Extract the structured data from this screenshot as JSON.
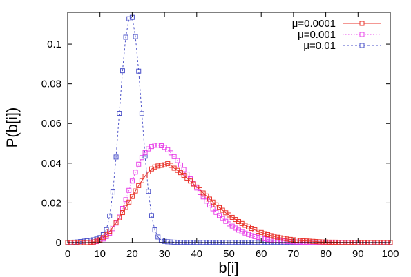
{
  "chart_data": {
    "type": "line",
    "xlabel": "b[i]",
    "ylabel": "P(b[i])",
    "xlim": [
      0,
      100
    ],
    "ylim": [
      0,
      0.116
    ],
    "x_ticks": [
      "0",
      "10",
      "20",
      "30",
      "40",
      "50",
      "60",
      "70",
      "80",
      "90",
      "100"
    ],
    "y_ticks": [
      "0",
      "0.02",
      "0.04",
      "0.06",
      "0.08",
      "0.1"
    ],
    "legend_position": "top-right",
    "grid": false,
    "markers": "open-square",
    "series": [
      {
        "name": "μ=0.0001",
        "color": "#e8322a",
        "line_style": "solid",
        "x": [
          0,
          1,
          2,
          3,
          4,
          5,
          6,
          7,
          8,
          9,
          10,
          11,
          12,
          13,
          14,
          15,
          16,
          17,
          18,
          19,
          20,
          21,
          22,
          23,
          24,
          25,
          26,
          27,
          28,
          29,
          30,
          31,
          32,
          33,
          34,
          35,
          36,
          37,
          38,
          39,
          40,
          41,
          42,
          43,
          44,
          45,
          46,
          47,
          48,
          49,
          50,
          51,
          52,
          53,
          54,
          55,
          56,
          57,
          58,
          59,
          60,
          61,
          62,
          63,
          64,
          65,
          66,
          67,
          68,
          69,
          70,
          71,
          72,
          73,
          74,
          75,
          76,
          77,
          78,
          79,
          80,
          81,
          82,
          83,
          84,
          85,
          86,
          87,
          88,
          89,
          90,
          91,
          92,
          93,
          94,
          95,
          96,
          97,
          98,
          99,
          100
        ],
        "values": [
          0,
          0,
          0,
          0,
          0,
          0,
          0,
          0.0001,
          0.0003,
          0.0007,
          0.0014,
          0.0025,
          0.0039,
          0.0057,
          0.0078,
          0.0101,
          0.0125,
          0.0151,
          0.0177,
          0.0204,
          0.0232,
          0.026,
          0.0287,
          0.0312,
          0.0335,
          0.0356,
          0.0371,
          0.0381,
          0.0386,
          0.0389,
          0.0392,
          0.0398,
          0.0389,
          0.0375,
          0.0364,
          0.0352,
          0.0339,
          0.0325,
          0.031,
          0.0295,
          0.028,
          0.0266,
          0.025,
          0.0235,
          0.0219,
          0.0204,
          0.019,
          0.0176,
          0.0163,
          0.015,
          0.0139,
          0.0127,
          0.0116,
          0.0106,
          0.0096,
          0.0087,
          0.0079,
          0.0071,
          0.0064,
          0.0057,
          0.0051,
          0.0045,
          0.004,
          0.0035,
          0.0031,
          0.0027,
          0.0024,
          0.0021,
          0.0018,
          0.0016,
          0.0014,
          0.0012,
          0.001,
          0.0009,
          0.0008,
          0.0007,
          0.0006,
          0.0005,
          0.0004,
          0.0003,
          0.0003,
          0.0002,
          0.0002,
          0.0002,
          0.0001,
          0.0001,
          0.0001,
          0.0001,
          0.0001,
          0.0001,
          0,
          0,
          0,
          0,
          0,
          0,
          0,
          0,
          0,
          0,
          0
        ]
      },
      {
        "name": "μ=0.001",
        "color": "#e840e8",
        "line_style": "dotted",
        "x": [
          0,
          1,
          2,
          3,
          4,
          5,
          6,
          7,
          8,
          9,
          10,
          11,
          12,
          13,
          14,
          15,
          16,
          17,
          18,
          19,
          20,
          21,
          22,
          23,
          24,
          25,
          26,
          27,
          28,
          29,
          30,
          31,
          32,
          33,
          34,
          35,
          36,
          37,
          38,
          39,
          40,
          41,
          42,
          43,
          44,
          45,
          46,
          47,
          48,
          49,
          50,
          51,
          52,
          53,
          54,
          55,
          56,
          57,
          58,
          59,
          60,
          61,
          62,
          63,
          64,
          65,
          66,
          67,
          68,
          69,
          70,
          71,
          72,
          73,
          74,
          75,
          76,
          77,
          78,
          79,
          80,
          81,
          82,
          83,
          84,
          85,
          86,
          87,
          88,
          89,
          90,
          91,
          92,
          93,
          94,
          95,
          96,
          97,
          98,
          99,
          100
        ],
        "values": [
          0,
          0,
          0,
          0,
          0,
          0,
          0,
          0.0001,
          0.0002,
          0.0005,
          0.001,
          0.0018,
          0.003,
          0.0047,
          0.007,
          0.0098,
          0.0132,
          0.0172,
          0.0216,
          0.0263,
          0.031,
          0.0355,
          0.0395,
          0.0428,
          0.0454,
          0.0472,
          0.0484,
          0.049,
          0.0491,
          0.0488,
          0.048,
          0.0468,
          0.0452,
          0.0433,
          0.0413,
          0.0391,
          0.0368,
          0.0345,
          0.0321,
          0.0298,
          0.0275,
          0.0252,
          0.023,
          0.0209,
          0.0189,
          0.017,
          0.0152,
          0.0136,
          0.0121,
          0.0107,
          0.0094,
          0.0083,
          0.0073,
          0.0063,
          0.0055,
          0.0048,
          0.0041,
          0.0035,
          0.003,
          0.0026,
          0.0022,
          0.0019,
          0.0016,
          0.0013,
          0.0011,
          0.0009,
          0.0008,
          0.0007,
          0.0006,
          0.0005,
          0.0004,
          0.0003,
          0.0003,
          0.0002,
          0.0002,
          0.0001,
          0.0001,
          0.0001,
          0.0001,
          0.0001,
          0,
          0,
          0,
          0,
          0,
          0,
          0,
          0,
          0,
          0,
          0,
          0,
          0,
          0,
          0,
          0,
          0,
          0,
          0,
          0,
          0
        ]
      },
      {
        "name": "μ=0.01",
        "color": "#4a50c8",
        "line_style": "dashed",
        "x": [
          0,
          1,
          2,
          3,
          4,
          5,
          6,
          7,
          8,
          9,
          10,
          11,
          12,
          13,
          14,
          15,
          16,
          17,
          18,
          19,
          20,
          21,
          22,
          23,
          24,
          25,
          26,
          27,
          28,
          29,
          30,
          31,
          32,
          33,
          34,
          35,
          36,
          37,
          38,
          39,
          40,
          41,
          42,
          43,
          44,
          45,
          46,
          47,
          48,
          49,
          50,
          51,
          52,
          53,
          54,
          55,
          56,
          57,
          58,
          59,
          60,
          61,
          62,
          63,
          64,
          65,
          66,
          67,
          68,
          69,
          70,
          71,
          72,
          73,
          74,
          75,
          76,
          77,
          78,
          79,
          80,
          81,
          82,
          83,
          84,
          85,
          86,
          87,
          88,
          89,
          90,
          91,
          92,
          93,
          94,
          95,
          96,
          97,
          98,
          99,
          100
        ],
        "values": [
          0.0001,
          0.0001,
          0.0002,
          0.0003,
          0.0005,
          0.0007,
          0.0009,
          0.0011,
          0.0014,
          0.0018,
          0.0025,
          0.004,
          0.0065,
          0.0134,
          0.0255,
          0.0431,
          0.0651,
          0.0866,
          0.1035,
          0.1128,
          0.1135,
          0.1038,
          0.0864,
          0.065,
          0.0435,
          0.0258,
          0.0136,
          0.0064,
          0.0028,
          0.0012,
          0.0006,
          0.0004,
          0.0003,
          0.0002,
          0.0001,
          0.0001,
          0.0001,
          0.0001,
          0.0001,
          0.0001,
          0.0001,
          0.0001,
          0.0001,
          0.0001,
          0.0001,
          0.0001,
          0.0001,
          0.0001,
          0.0001,
          0.0001,
          0.0001,
          0.0001,
          0.0001,
          0.0001,
          0.0001,
          0.0001,
          0.0001,
          0.0001,
          0.0001,
          0.0001,
          0.0001,
          0.0001,
          0.0001,
          0.0001,
          0.0001,
          0.0001,
          0.0001,
          0.0001,
          0.0001,
          0.0001,
          0.0001,
          0.0001,
          0.0001,
          0.0001,
          0.0001,
          0.0001,
          0.0001,
          0.0001,
          0.0001,
          0.0001,
          0.0001,
          0.0001,
          0.0001,
          0.0001,
          0.0001,
          0.0001,
          0.0001,
          0.0001,
          0.0001,
          0.0001,
          0.0001,
          0.0001,
          0.0001,
          0.0001,
          0.0001,
          0.0001,
          0.0001,
          0.0001,
          0.0001,
          0.0001,
          0.0001
        ]
      }
    ]
  }
}
